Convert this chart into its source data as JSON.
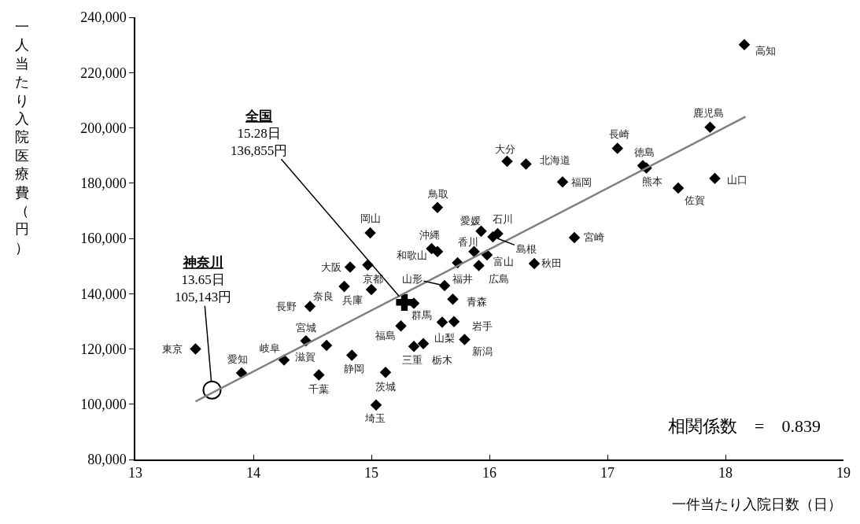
{
  "chart_data": {
    "type": "scatter",
    "xlabel": "一件当たり入院日数（日）",
    "ylabel": "一人当たり入院医療費（円）",
    "xlim": [
      13,
      19
    ],
    "xticks": [
      13,
      14,
      15,
      16,
      17,
      18,
      19
    ],
    "ylim": [
      80000,
      240000
    ],
    "yticks": [
      {
        "value": 80000,
        "label": "80,000"
      },
      {
        "value": 100000,
        "label": "100,000"
      },
      {
        "value": 120000,
        "label": "120,000"
      },
      {
        "value": 140000,
        "label": "140,000"
      },
      {
        "value": 160000,
        "label": "160,000"
      },
      {
        "value": 180000,
        "label": "180,000"
      },
      {
        "value": 200000,
        "label": "200,000"
      },
      {
        "value": 220000,
        "label": "220,000"
      },
      {
        "value": 240000,
        "label": "240,000"
      }
    ],
    "series": [
      {
        "marker": "diamond",
        "color": "#000000",
        "x": [
          13.51,
          13.9,
          14.26,
          14.445,
          14.62,
          14.555,
          14.835,
          15.12,
          15.04,
          15.25,
          14.48,
          14.77,
          15.0,
          14.82,
          14.97,
          14.99,
          15.36,
          15.73,
          15.62,
          15.91,
          15.69,
          15.6,
          15.7,
          15.79,
          15.36,
          15.44,
          15.56,
          15.51,
          15.87,
          15.98,
          15.93,
          16.07,
          16.03,
          15.56,
          16.38,
          16.72,
          16.15,
          16.31,
          16.62,
          17.085,
          17.3,
          17.33,
          17.87,
          17.6,
          17.91,
          18.16
        ],
        "values": [
          120000,
          111300,
          116000,
          122900,
          121300,
          110600,
          117700,
          111500,
          99700,
          128300,
          135400,
          142600,
          141500,
          149600,
          150400,
          162000,
          136500,
          151200,
          142900,
          150200,
          138000,
          129700,
          129900,
          123400,
          120900,
          121900,
          155200,
          156300,
          155200,
          154000,
          162600,
          161700,
          160600,
          171200,
          150900,
          160300,
          187900,
          186900,
          180400,
          192600,
          186300,
          185500,
          200200,
          178200,
          181700,
          230100
        ]
      },
      {
        "marker": "cross",
        "color": "#000000",
        "x": [
          15.28
        ],
        "values": [
          136855
        ]
      },
      {
        "marker": "circle",
        "color": "#000000",
        "x": [
          13.65
        ],
        "values": [
          105143
        ]
      },
      {
        "type": "line",
        "color": "#808080",
        "x": [
          13.51,
          18.17
        ],
        "values": [
          101000,
          204000
        ]
      }
    ],
    "annotations": [
      {
        "text": "東京",
        "x": 13.51,
        "y": 120000
      },
      {
        "text": "愛知",
        "x": 13.9,
        "y": 111300
      },
      {
        "text": "岐阜",
        "x": 14.26,
        "y": 116000
      },
      {
        "text": "宮城",
        "x": 14.445,
        "y": 122900
      },
      {
        "text": "滋賀",
        "x": 14.62,
        "y": 121300
      },
      {
        "text": "千葉",
        "x": 14.555,
        "y": 110600
      },
      {
        "text": "静岡",
        "x": 14.835,
        "y": 117700
      },
      {
        "text": "茨城",
        "x": 15.12,
        "y": 111500
      },
      {
        "text": "埼玉",
        "x": 15.04,
        "y": 99700
      },
      {
        "text": "福島",
        "x": 15.25,
        "y": 128300
      },
      {
        "text": "長野",
        "x": 14.48,
        "y": 135400
      },
      {
        "text": "奈良",
        "x": 14.77,
        "y": 142600
      },
      {
        "text": "兵庫",
        "x": 15.0,
        "y": 141500
      },
      {
        "text": "大阪",
        "x": 14.82,
        "y": 149600
      },
      {
        "text": "京都",
        "x": 14.97,
        "y": 150400
      },
      {
        "text": "岡山",
        "x": 14.99,
        "y": 162000
      },
      {
        "text": "群馬",
        "x": 15.36,
        "y": 136500
      },
      {
        "text": "福井",
        "x": 15.73,
        "y": 151200
      },
      {
        "text": "山形",
        "x": 15.62,
        "y": 142900
      },
      {
        "text": "広島",
        "x": 15.91,
        "y": 150200
      },
      {
        "text": "青森",
        "x": 15.69,
        "y": 138000
      },
      {
        "text": "山梨",
        "x": 15.6,
        "y": 129700
      },
      {
        "text": "岩手",
        "x": 15.7,
        "y": 129900
      },
      {
        "text": "新潟",
        "x": 15.79,
        "y": 123400
      },
      {
        "text": "三重",
        "x": 15.36,
        "y": 120900
      },
      {
        "text": "栃木",
        "x": 15.44,
        "y": 121900
      },
      {
        "text": "和歌山",
        "x": 15.56,
        "y": 155200
      },
      {
        "text": "沖縄",
        "x": 15.51,
        "y": 156300
      },
      {
        "text": "香川",
        "x": 15.87,
        "y": 155200
      },
      {
        "text": "富山",
        "x": 15.98,
        "y": 154000
      },
      {
        "text": "愛媛",
        "x": 15.93,
        "y": 162600
      },
      {
        "text": "石川",
        "x": 16.07,
        "y": 161700
      },
      {
        "text": "島根",
        "x": 16.03,
        "y": 160600
      },
      {
        "text": "鳥取",
        "x": 15.56,
        "y": 171200
      },
      {
        "text": "秋田",
        "x": 16.38,
        "y": 150900
      },
      {
        "text": "宮崎",
        "x": 16.72,
        "y": 160300
      },
      {
        "text": "大分",
        "x": 16.15,
        "y": 187900
      },
      {
        "text": "北海道",
        "x": 16.31,
        "y": 186900
      },
      {
        "text": "福岡",
        "x": 16.62,
        "y": 180400
      },
      {
        "text": "長崎",
        "x": 17.085,
        "y": 192600
      },
      {
        "text": "徳島",
        "x": 17.3,
        "y": 186300
      },
      {
        "text": "熊本",
        "x": 17.33,
        "y": 185500
      },
      {
        "text": "鹿児島",
        "x": 17.87,
        "y": 200200
      },
      {
        "text": "佐賀",
        "x": 17.6,
        "y": 178200
      },
      {
        "text": "山口",
        "x": 17.91,
        "y": 181700
      },
      {
        "text": "高知",
        "x": 18.16,
        "y": 230100
      },
      {
        "text": "全国\n15.28日\n136,855円",
        "x": 15.28,
        "y": 136855
      },
      {
        "text": "神奈川\n13.65日\n105,143円",
        "x": 13.65,
        "y": 105143
      },
      "相関係数　=　0.839"
    ]
  }
}
